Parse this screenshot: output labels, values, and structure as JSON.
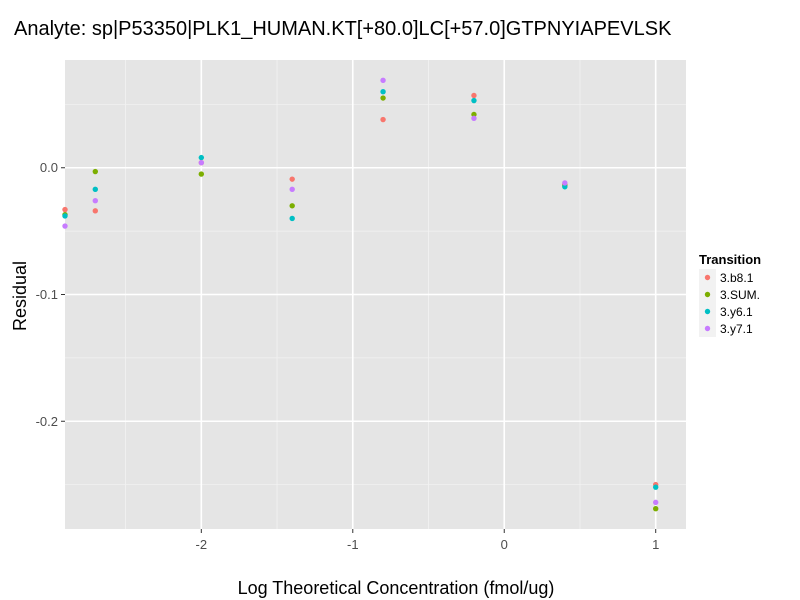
{
  "chart_data": {
    "type": "scatter",
    "title": "Analyte: sp|P53350|PLK1_HUMAN.KT[+80.0]LC[+57.0]GTPNYIAPEVLSK",
    "xlabel": "Log Theoretical Concentration (fmol/ug)",
    "ylabel": "Residual",
    "xlim": [
      -2.9,
      1.2
    ],
    "ylim": [
      -0.285,
      0.085
    ],
    "x_ticks": [
      -2,
      -1,
      0,
      1
    ],
    "x_tick_labels": [
      "-2",
      "-1",
      "0",
      "1"
    ],
    "y_ticks": [
      0.0,
      -0.1,
      -0.2
    ],
    "y_tick_labels": [
      "0.0",
      "-0.1",
      "-0.2"
    ],
    "grid": true,
    "legend_position": "right",
    "legend_title": "Transition",
    "series": [
      {
        "name": "3.b8.1",
        "color": "#F8766D",
        "x": [
          -2.9,
          -2.7,
          -2.0,
          -1.4,
          -0.8,
          -0.2,
          0.4,
          1.0
        ],
        "y": [
          -0.033,
          -0.034,
          0.004,
          -0.009,
          0.038,
          0.057,
          -0.013,
          -0.25
        ]
      },
      {
        "name": "3.SUM.",
        "color": "#7CAE00",
        "x": [
          -2.9,
          -2.7,
          -2.0,
          -1.4,
          -0.8,
          -0.2,
          0.4,
          1.0
        ],
        "y": [
          -0.037,
          -0.003,
          -0.005,
          -0.03,
          0.055,
          0.042,
          -0.014,
          -0.269
        ]
      },
      {
        "name": "3.y6.1",
        "color": "#00BFC4",
        "x": [
          -2.9,
          -2.7,
          -2.0,
          -1.4,
          -0.8,
          -0.2,
          0.4,
          1.0
        ],
        "y": [
          -0.038,
          -0.017,
          0.008,
          -0.04,
          0.06,
          0.053,
          -0.015,
          -0.252
        ]
      },
      {
        "name": "3.y7.1",
        "color": "#C77CFF",
        "x": [
          -2.9,
          -2.7,
          -2.0,
          -1.4,
          -0.8,
          -0.2,
          0.4,
          1.0
        ],
        "y": [
          -0.046,
          -0.026,
          0.004,
          -0.017,
          0.069,
          0.039,
          -0.012,
          -0.264
        ]
      }
    ]
  }
}
